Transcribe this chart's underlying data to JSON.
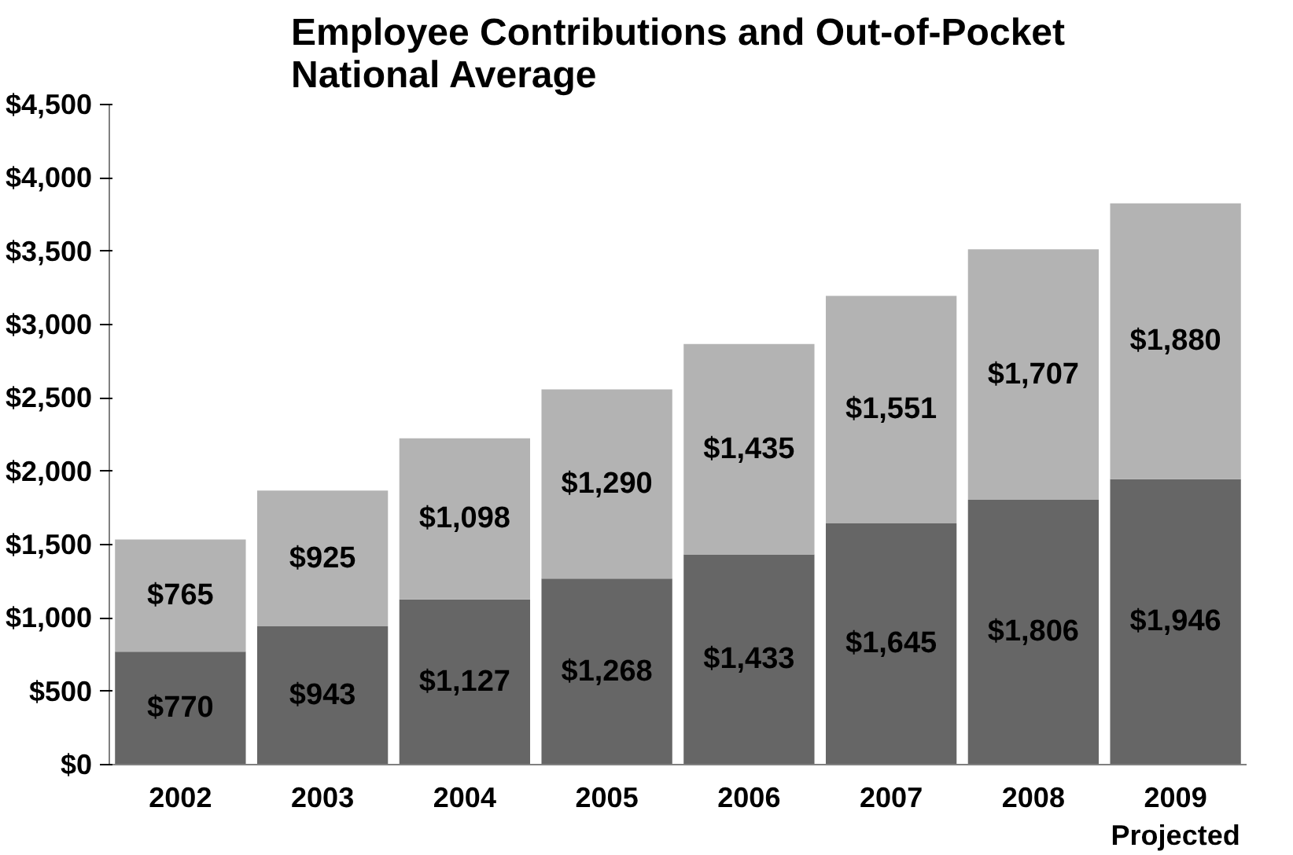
{
  "chart_data": {
    "type": "bar",
    "stacked": true,
    "title": "Employee Contributions and Out-of-Pocket\nNational Average",
    "categories": [
      "2002",
      "2003",
      "2004",
      "2005",
      "2006",
      "2007",
      "2008",
      "2009\nProjected"
    ],
    "series": [
      {
        "color": "#666666",
        "values": [
          770,
          943,
          1127,
          1268,
          1433,
          1645,
          1806,
          1946
        ],
        "value_labels": [
          "$770",
          "$943",
          "$1,127",
          "$1,268",
          "$1,433",
          "$1,645",
          "$1,806",
          "$1,946"
        ]
      },
      {
        "color": "#b3b3b3",
        "values": [
          765,
          925,
          1098,
          1290,
          1435,
          1551,
          1707,
          1880
        ],
        "value_labels": [
          "$765",
          "$925",
          "$1,098",
          "$1,290",
          "$1,435",
          "$1,551",
          "$1,707",
          "$1,880"
        ]
      }
    ],
    "ylim": [
      0,
      4500
    ],
    "yticks": [
      {
        "value": 0,
        "label": "$0"
      },
      {
        "value": 500,
        "label": "$500"
      },
      {
        "value": 1000,
        "label": "$1,000"
      },
      {
        "value": 1500,
        "label": "$1,500"
      },
      {
        "value": 2000,
        "label": "$2,000"
      },
      {
        "value": 2500,
        "label": "$2,500"
      },
      {
        "value": 3000,
        "label": "$3,000"
      },
      {
        "value": 3500,
        "label": "$3,500"
      },
      {
        "value": 4000,
        "label": "$4,000"
      },
      {
        "value": 4500,
        "label": "$4,500"
      }
    ],
    "grid": false
  }
}
